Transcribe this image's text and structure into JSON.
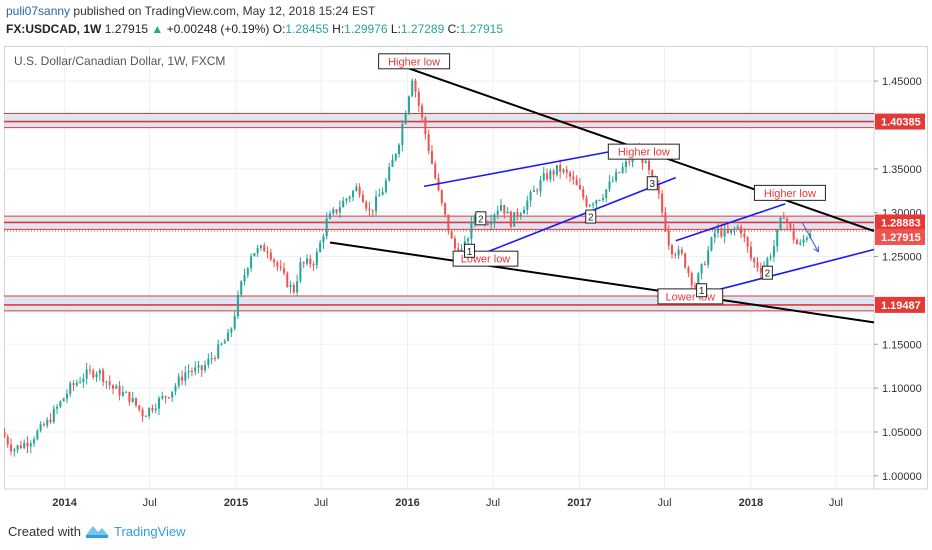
{
  "header": {
    "user": "puli07sanny",
    "published_text": "published on TradingView.com, May 12, 2018 15:24 EST",
    "symbol": "FX:USDCAD, 1W",
    "last": "1.27915",
    "change": "+0.00248 (+0.19%)",
    "o_label": "O:",
    "o_value": "1.28455",
    "h_label": "H:",
    "h_value": "1.29976",
    "l_label": "L:",
    "l_value": "1.27289",
    "c_label": "C:",
    "c_value": "1.27915"
  },
  "footer": {
    "created_with": "Created with",
    "brand": "TradingView"
  },
  "colors": {
    "up": "#26a69a",
    "down": "#ef5350",
    "trend_black": "#000000",
    "channel_blue": "#1a1aff",
    "zone_fill": "#d6dcef",
    "zone_line": "#e53935",
    "price_line": "#e53935",
    "arrow": "#3b5bdb"
  },
  "chart_data": {
    "type": "candlestick",
    "title": "U.S. Dollar/Canadian Dollar, 1W, FXCM",
    "y_ticks": [
      1.0,
      1.05,
      1.1,
      1.15,
      1.2,
      1.25,
      1.3,
      1.35,
      1.4,
      1.45
    ],
    "y_tick_labels": [
      "1.00000",
      "1.05000",
      "1.10000",
      "1.15000",
      "1.20000",
      "1.25000",
      "1.30000",
      "1.35000",
      "1.40000",
      "1.45000"
    ],
    "ylim": [
      0.985,
      1.49
    ],
    "x_range": [
      "2013-08-25",
      "2018-09-20"
    ],
    "x_ticks": [
      {
        "date": "2014-01-01",
        "label": "2014",
        "bold": true
      },
      {
        "date": "2014-07-01",
        "label": "Jul",
        "bold": false
      },
      {
        "date": "2015-01-01",
        "label": "2015",
        "bold": true
      },
      {
        "date": "2015-07-01",
        "label": "Jul",
        "bold": false
      },
      {
        "date": "2016-01-01",
        "label": "2016",
        "bold": true
      },
      {
        "date": "2016-07-01",
        "label": "Jul",
        "bold": false
      },
      {
        "date": "2017-01-01",
        "label": "2017",
        "bold": true
      },
      {
        "date": "2017-07-01",
        "label": "Jul",
        "bold": false
      },
      {
        "date": "2018-01-01",
        "label": "2018",
        "bold": true
      },
      {
        "date": "2018-07-01",
        "label": "Jul",
        "bold": false
      }
    ],
    "price_path": [
      [
        "2013-08-26",
        1.05
      ],
      [
        "2013-09-20",
        1.03
      ],
      [
        "2013-10-25",
        1.04
      ],
      [
        "2013-12-01",
        1.06
      ],
      [
        "2014-01-20",
        1.1
      ],
      [
        "2014-02-20",
        1.115
      ],
      [
        "2014-03-20",
        1.12
      ],
      [
        "2014-04-20",
        1.1
      ],
      [
        "2014-05-25",
        1.09
      ],
      [
        "2014-06-25",
        1.07
      ],
      [
        "2014-07-15",
        1.08
      ],
      [
        "2014-08-20",
        1.095
      ],
      [
        "2014-09-25",
        1.12
      ],
      [
        "2014-10-25",
        1.12
      ],
      [
        "2014-11-25",
        1.14
      ],
      [
        "2014-12-25",
        1.16
      ],
      [
        "2015-01-20",
        1.22
      ],
      [
        "2015-02-10",
        1.255
      ],
      [
        "2015-03-15",
        1.26
      ],
      [
        "2015-04-15",
        1.23
      ],
      [
        "2015-05-10",
        1.21
      ],
      [
        "2015-05-25",
        1.24
      ],
      [
        "2015-06-25",
        1.245
      ],
      [
        "2015-07-20",
        1.29
      ],
      [
        "2015-08-20",
        1.31
      ],
      [
        "2015-09-25",
        1.33
      ],
      [
        "2015-10-20",
        1.3
      ],
      [
        "2015-11-20",
        1.33
      ],
      [
        "2015-12-20",
        1.38
      ],
      [
        "2016-01-18",
        1.455
      ],
      [
        "2016-02-15",
        1.39
      ],
      [
        "2016-03-15",
        1.32
      ],
      [
        "2016-04-15",
        1.26
      ],
      [
        "2016-05-05",
        1.255
      ],
      [
        "2016-06-01",
        1.3
      ],
      [
        "2016-06-25",
        1.29
      ],
      [
        "2016-07-25",
        1.31
      ],
      [
        "2016-08-15",
        1.29
      ],
      [
        "2016-09-15",
        1.31
      ],
      [
        "2016-10-25",
        1.34
      ],
      [
        "2016-11-25",
        1.35
      ],
      [
        "2016-12-20",
        1.34
      ],
      [
        "2017-01-25",
        1.31
      ],
      [
        "2017-02-25",
        1.32
      ],
      [
        "2017-03-25",
        1.34
      ],
      [
        "2017-04-25",
        1.36
      ],
      [
        "2017-05-10",
        1.375
      ],
      [
        "2017-06-01",
        1.35
      ],
      [
        "2017-06-25",
        1.32
      ],
      [
        "2017-07-20",
        1.26
      ],
      [
        "2017-08-15",
        1.25
      ],
      [
        "2017-09-10",
        1.215
      ],
      [
        "2017-10-05",
        1.25
      ],
      [
        "2017-10-25",
        1.28
      ],
      [
        "2017-11-20",
        1.275
      ],
      [
        "2017-12-15",
        1.285
      ],
      [
        "2018-01-10",
        1.245
      ],
      [
        "2018-02-01",
        1.235
      ],
      [
        "2018-02-25",
        1.26
      ],
      [
        "2018-03-18",
        1.3
      ],
      [
        "2018-04-01",
        1.28
      ],
      [
        "2018-04-20",
        1.26
      ],
      [
        "2018-05-12",
        1.279
      ]
    ],
    "zones": [
      {
        "price": 1.40385,
        "label": "1.40385",
        "band_lo": 1.397,
        "band_hi": 1.413
      },
      {
        "price": 1.28883,
        "label": "1.28883",
        "band_lo": 1.281,
        "band_hi": 1.296
      },
      {
        "price": 1.19487,
        "label": "1.19487",
        "band_lo": 1.188,
        "band_hi": 1.205
      }
    ],
    "last_price": {
      "price": 1.27915,
      "label": "1.27915"
    },
    "trendlines": [
      {
        "name": "upper-wedge-line",
        "style": "black",
        "from": [
          "2016-01-01",
          1.465
        ],
        "to": [
          "2018-09-20",
          1.279
        ]
      },
      {
        "name": "lower-wedge-line",
        "style": "black",
        "from": [
          "2015-07-20",
          1.266
        ],
        "to": [
          "2018-09-20",
          1.175
        ]
      },
      {
        "name": "channel1-upper",
        "style": "blue",
        "from": [
          "2016-02-05",
          1.33
        ],
        "to": [
          "2017-05-01",
          1.375
        ]
      },
      {
        "name": "channel1-lower",
        "style": "blue",
        "from": [
          "2016-05-01",
          1.245
        ],
        "to": [
          "2017-07-25",
          1.34
        ]
      },
      {
        "name": "channel2-upper",
        "style": "blue",
        "from": [
          "2017-07-25",
          1.268
        ],
        "to": [
          "2018-03-15",
          1.31
        ]
      },
      {
        "name": "channel2-lower",
        "style": "blue",
        "from": [
          "2017-09-01",
          1.205
        ],
        "to": [
          "2018-09-20",
          1.258
        ]
      }
    ],
    "forecast_arrow": {
      "from": [
        "2018-04-20",
        1.289
      ],
      "to": [
        "2018-05-25",
        1.255
      ]
    },
    "annotations": [
      {
        "text": "Higher low",
        "date": "2016-01-15",
        "price": 1.472
      },
      {
        "text": "Higher low",
        "date": "2017-05-18",
        "price": 1.369
      },
      {
        "text": "Higher low",
        "date": "2018-03-25",
        "price": 1.322
      },
      {
        "text": "Lower low",
        "date": "2016-06-15",
        "price": 1.247
      },
      {
        "text": "Lower low",
        "date": "2017-08-25",
        "price": 1.204
      }
    ],
    "wave_labels": [
      {
        "text": "1",
        "date": "2016-05-12",
        "price": 1.256
      },
      {
        "text": "2",
        "date": "2016-06-05",
        "price": 1.293
      },
      {
        "text": "2",
        "date": "2017-01-25",
        "price": 1.295
      },
      {
        "text": "3",
        "date": "2017-06-05",
        "price": 1.333
      },
      {
        "text": "1",
        "date": "2017-09-18",
        "price": 1.211
      },
      {
        "text": "2",
        "date": "2018-02-05",
        "price": 1.231
      }
    ]
  }
}
